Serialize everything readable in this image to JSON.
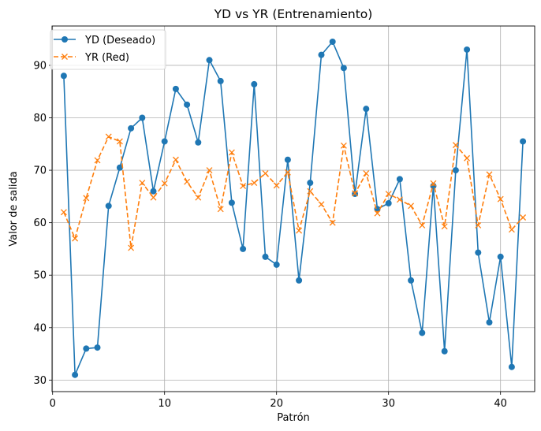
{
  "chart_data": {
    "type": "line",
    "title": "YD vs YR (Entrenamiento)",
    "xlabel": "Patrón",
    "ylabel": "Valor de salida",
    "xlim": [
      -0.05,
      43.05
    ],
    "ylim": [
      27.8,
      97.5
    ],
    "xticks": [
      0,
      10,
      20,
      30,
      40
    ],
    "yticks": [
      30,
      40,
      50,
      60,
      70,
      80,
      90
    ],
    "grid": true,
    "legend_position": "top-left",
    "x": [
      1,
      2,
      3,
      4,
      5,
      6,
      7,
      8,
      9,
      10,
      11,
      12,
      13,
      14,
      15,
      16,
      17,
      18,
      19,
      20,
      21,
      22,
      23,
      24,
      25,
      26,
      27,
      28,
      29,
      30,
      31,
      32,
      33,
      34,
      35,
      36,
      37,
      38,
      39,
      40,
      41,
      42
    ],
    "series": [
      {
        "name": "YD (Deseado)",
        "color": "#1f77b4",
        "style": "solid",
        "marker": "circle",
        "values": [
          88.0,
          31.0,
          36.0,
          36.2,
          63.2,
          70.5,
          78.0,
          80.0,
          66.0,
          75.5,
          85.5,
          82.5,
          75.3,
          91.0,
          87.0,
          63.8,
          55.0,
          86.4,
          53.5,
          52.0,
          72.0,
          49.0,
          67.6,
          92.0,
          94.5,
          89.5,
          65.5,
          81.7,
          62.6,
          63.7,
          68.3,
          49.0,
          39.0,
          67.0,
          35.5,
          70.0,
          93.0,
          54.3,
          41.0,
          53.5,
          32.5,
          75.5
        ]
      },
      {
        "name": "YR (Red)",
        "color": "#ff7f0e",
        "style": "dashed",
        "marker": "x",
        "values": [
          62.0,
          57.0,
          64.7,
          71.9,
          76.4,
          75.5,
          55.2,
          67.6,
          64.8,
          67.5,
          72.0,
          67.8,
          64.8,
          70.0,
          62.6,
          73.4,
          67.0,
          67.6,
          69.4,
          67.1,
          69.6,
          58.5,
          66.0,
          63.5,
          60.0,
          74.7,
          65.6,
          69.4,
          61.8,
          65.5,
          64.4,
          63.2,
          59.5,
          67.5,
          59.3,
          74.8,
          72.3,
          59.5,
          69.2,
          64.5,
          58.7,
          61.0
        ]
      }
    ]
  }
}
